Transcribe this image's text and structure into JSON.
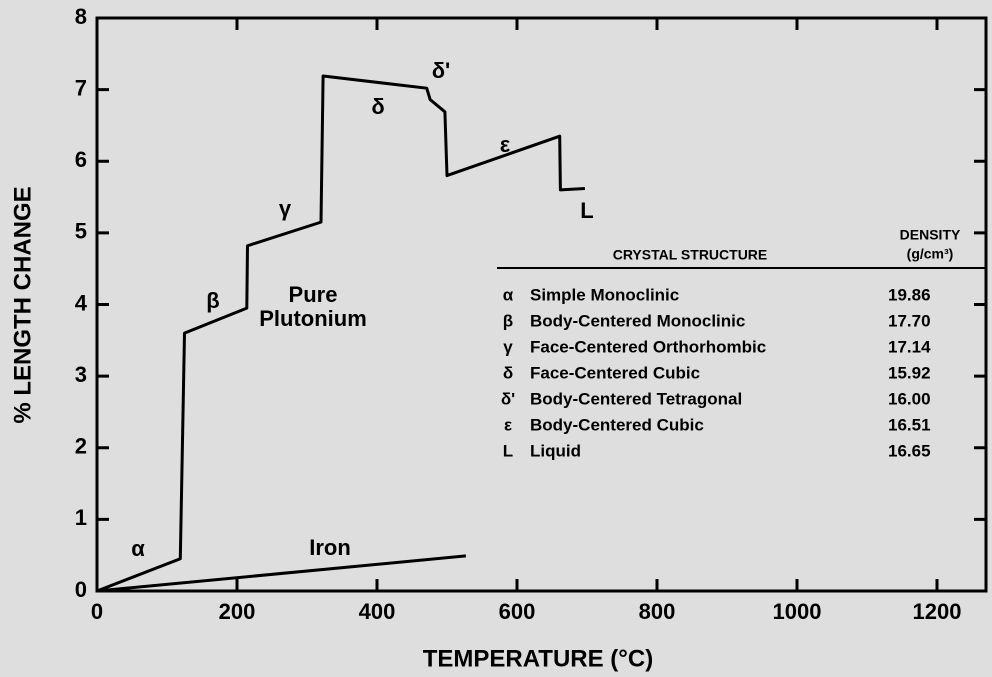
{
  "chart_data": {
    "type": "line",
    "x_label": "TEMPERATURE (°C)",
    "y_label": "% LENGTH CHANGE",
    "xlim": [
      0,
      1270
    ],
    "ylim": [
      0,
      8
    ],
    "xticks": [
      0,
      200,
      400,
      600,
      800,
      1000,
      1200
    ],
    "yticks": [
      0,
      1,
      2,
      3,
      4,
      5,
      6,
      7,
      8
    ],
    "grid": false,
    "series": [
      {
        "name": "Pure Plutonium",
        "color": "#000000",
        "x": [
          0,
          119,
          125,
          214,
          215,
          320,
          323,
          471,
          476,
          497,
          500,
          661,
          662,
          697
        ],
        "values": [
          0,
          0.45,
          3.6,
          3.95,
          4.82,
          5.15,
          7.19,
          7.02,
          6.86,
          6.69,
          5.8,
          6.35,
          5.6,
          5.62
        ]
      },
      {
        "name": "Iron",
        "color": "#000000",
        "x": [
          0,
          527
        ],
        "values": [
          0,
          0.49
        ]
      }
    ],
    "annotations": [
      "α",
      "β",
      "γ",
      "δ",
      "δ'",
      "ε",
      "L"
    ],
    "table": {
      "header": [
        "CRYSTAL STRUCTURE",
        "DENSITY",
        "(g/cm³)"
      ],
      "rows": [
        [
          "α",
          "Simple Monoclinic",
          "19.86"
        ],
        [
          "β",
          "Body-Centered Monoclinic",
          "17.70"
        ],
        [
          "γ",
          "Face-Centered Orthorhombic",
          "17.14"
        ],
        [
          "δ",
          "Face-Centered Cubic",
          "15.92"
        ],
        [
          "δ'",
          "Body-Centered Tetragonal",
          "16.00"
        ],
        [
          "ε",
          "Body-Centered Cubic",
          "16.51"
        ],
        [
          "L",
          "Liquid",
          "16.65"
        ]
      ]
    }
  }
}
